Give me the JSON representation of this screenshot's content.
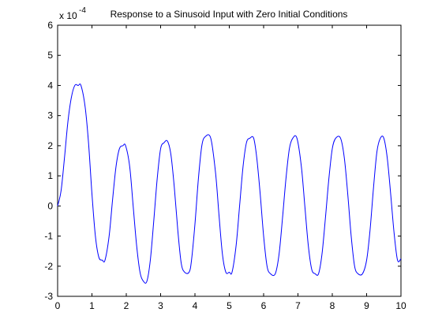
{
  "chart_data": {
    "type": "line",
    "title": "Response to a Sinusoid Input with Zero Initial Conditions",
    "xlabel": "",
    "ylabel": "",
    "xlim": [
      0,
      10
    ],
    "ylim": [
      -3,
      6
    ],
    "y_multiplier_base": "x 10",
    "y_multiplier_exponent": "-4",
    "grid": false,
    "x_ticks": [
      "0",
      "1",
      "2",
      "3",
      "4",
      "5",
      "6",
      "7",
      "8",
      "9",
      "10"
    ],
    "y_ticks": [
      "-3",
      "-2",
      "-1",
      "0",
      "1",
      "2",
      "3",
      "4",
      "5",
      "6"
    ],
    "line_color": "#0000ff",
    "series": [
      {
        "x": [
          0,
          0.1,
          0.2,
          0.3,
          0.4,
          0.5,
          0.6,
          0.68,
          0.8,
          0.9,
          1.0,
          1.1,
          1.2,
          1.3,
          1.38,
          1.5,
          1.6,
          1.7,
          1.8,
          1.9,
          1.98,
          2.1,
          2.2,
          2.3,
          2.4,
          2.5,
          2.6,
          2.7,
          2.8,
          2.9,
          3.0,
          3.1,
          3.2,
          3.3,
          3.4,
          3.5,
          3.6,
          3.7,
          3.83,
          3.9,
          4.0,
          4.1,
          4.2,
          4.3,
          4.46,
          4.6,
          4.7,
          4.8,
          4.9,
          5.0,
          5.08,
          5.2,
          5.3,
          5.4,
          5.5,
          5.6,
          5.71,
          5.8,
          5.9,
          6.0,
          6.1,
          6.2,
          6.34,
          6.45,
          6.55,
          6.65,
          6.75,
          6.85,
          6.97,
          7.1,
          7.2,
          7.3,
          7.4,
          7.5,
          7.6,
          7.7,
          7.8,
          7.9,
          8.0,
          8.1,
          8.24,
          8.35,
          8.45,
          8.55,
          8.65,
          8.75,
          8.88,
          9.0,
          9.1,
          9.2,
          9.3,
          9.4,
          9.5,
          9.6,
          9.7,
          9.8,
          9.9,
          10.0
        ],
        "y": [
          0,
          0.5,
          1.6,
          2.8,
          3.6,
          4.0,
          4.0,
          4.0,
          3.3,
          2.1,
          0.4,
          -1.0,
          -1.7,
          -1.8,
          -1.8,
          -1.0,
          0.2,
          1.3,
          1.9,
          2.0,
          2.0,
          1.3,
          0.0,
          -1.3,
          -2.2,
          -2.5,
          -2.5,
          -1.8,
          -0.5,
          0.9,
          1.9,
          2.1,
          2.15,
          1.7,
          0.6,
          -0.8,
          -1.9,
          -2.2,
          -2.2,
          -1.8,
          -0.6,
          0.9,
          2.0,
          2.3,
          2.25,
          1.1,
          -0.3,
          -1.6,
          -2.2,
          -2.2,
          -2.2,
          -1.3,
          0.0,
          1.3,
          2.1,
          2.25,
          2.25,
          1.6,
          0.4,
          -1.0,
          -2.0,
          -2.25,
          -2.25,
          -1.6,
          -0.4,
          0.9,
          1.9,
          2.25,
          2.25,
          1.3,
          0.0,
          -1.3,
          -2.1,
          -2.25,
          -2.25,
          -1.6,
          -0.4,
          0.9,
          1.9,
          2.25,
          2.25,
          1.6,
          0.4,
          -1.0,
          -2.0,
          -2.25,
          -2.25,
          -1.8,
          -0.8,
          0.6,
          1.8,
          2.25,
          2.25,
          1.6,
          0.4,
          -0.9,
          -1.8,
          -1.75
        ]
      }
    ]
  }
}
